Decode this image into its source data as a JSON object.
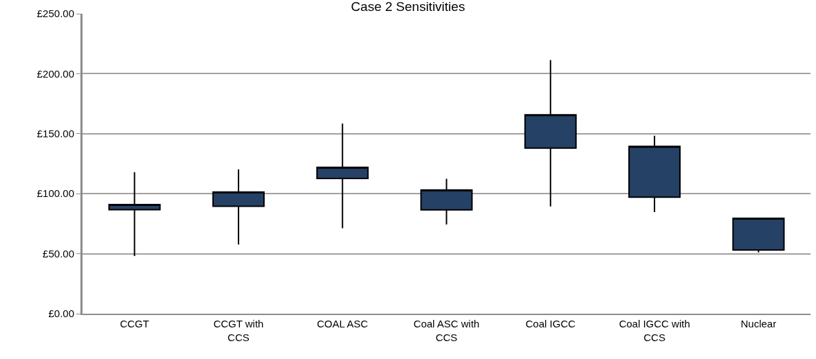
{
  "chart_data": {
    "type": "candlestick",
    "title": "Case 2 Sensitivities",
    "categories": [
      "CCGT",
      "CCGT with CCS",
      "COAL ASC",
      "Coal ASC with CCS",
      "Coal IGCC",
      "Coal IGCC with CCS",
      "Nuclear"
    ],
    "ohlc": [
      [
        86.7,
        118,
        48,
        90.9
      ],
      [
        89.6,
        120.3,
        57.7,
        101.4
      ],
      [
        112.7,
        158.5,
        71.2,
        122
      ],
      [
        86.5,
        112.4,
        74.3,
        103.1
      ],
      [
        138,
        211.4,
        89.4,
        165.8
      ],
      [
        97.1,
        148.3,
        84.6,
        139.4
      ],
      [
        53,
        80,
        51,
        79.5
      ]
    ],
    "color": "#264166",
    "ylim": [
      0,
      250
    ],
    "yticks": [
      {
        "value": 0,
        "label": "£0.00"
      },
      {
        "value": 50,
        "label": "£50.00"
      },
      {
        "value": 100,
        "label": "£100.00"
      },
      {
        "value": 150,
        "label": "£150.00"
      },
      {
        "value": 200,
        "label": "£200.00"
      },
      {
        "value": 250,
        "label": "£250.00"
      }
    ],
    "grid": "y"
  }
}
